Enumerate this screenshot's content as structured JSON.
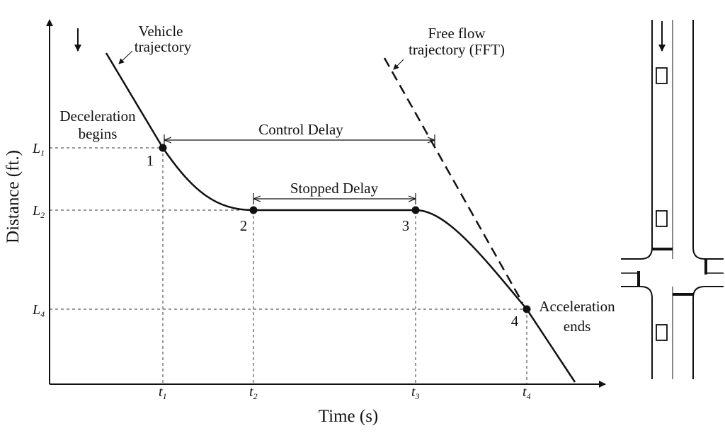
{
  "axes": {
    "x_title": "Time (s)",
    "y_title": "Distance (ft.)"
  },
  "labels": {
    "vehicle_1": "Vehicle",
    "vehicle_2": "trajectory",
    "fft_1": "Free flow",
    "fft_2": "trajectory (FFT)",
    "decel_1": "Deceleration",
    "decel_2": "begins",
    "accel_1": "Acceleration",
    "accel_2": "ends",
    "control_delay": "Control Delay",
    "stopped_delay": "Stopped Delay"
  },
  "y_ticks": [
    {
      "main": "L",
      "sub": "1"
    },
    {
      "main": "L",
      "sub": "2"
    },
    {
      "main": "L",
      "sub": "4"
    }
  ],
  "x_ticks": [
    {
      "main": "t",
      "sub": "1"
    },
    {
      "main": "t",
      "sub": "2"
    },
    {
      "main": "t",
      "sub": "3"
    },
    {
      "main": "t",
      "sub": "4"
    }
  ],
  "points": [
    "1",
    "2",
    "3",
    "4"
  ]
}
